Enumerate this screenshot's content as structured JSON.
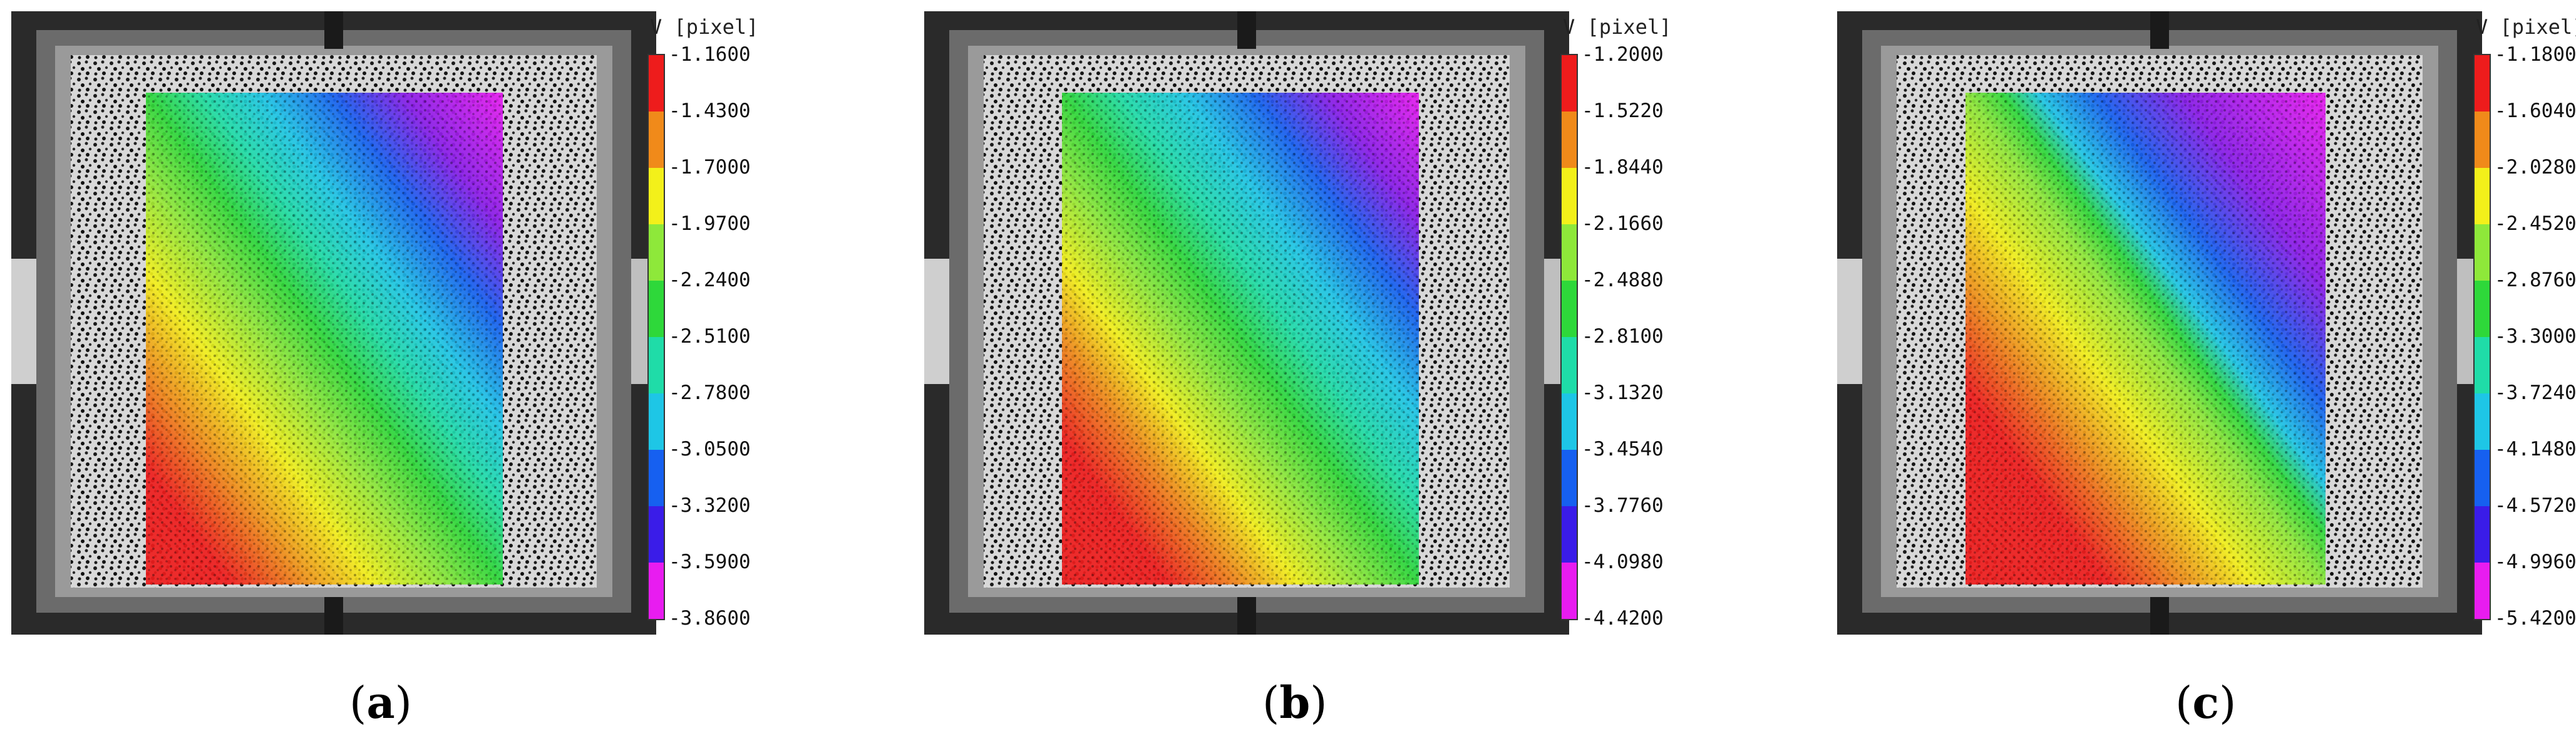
{
  "panels": [
    {
      "id": "a",
      "caption_letter": "a",
      "legend_title": "V [pixel]",
      "legend_ticks": [
        "-1.1600",
        "-1.4300",
        "-1.7000",
        "-1.9700",
        "-2.2400",
        "-2.5100",
        "-2.7800",
        "-3.0500",
        "-3.3200",
        "-3.5900",
        "-3.8600"
      ]
    },
    {
      "id": "b",
      "caption_letter": "b",
      "legend_title": "V [pixel]",
      "legend_ticks": [
        "-1.2000",
        "-1.5220",
        "-1.8440",
        "-2.1660",
        "-2.4880",
        "-2.8100",
        "-3.1320",
        "-3.4540",
        "-3.7760",
        "-4.0980",
        "-4.4200"
      ]
    },
    {
      "id": "c",
      "caption_letter": "c",
      "legend_title": "V [pixel]",
      "legend_ticks": [
        "-1.1800",
        "-1.6040",
        "-2.0280",
        "-2.4520",
        "-2.8760",
        "-3.3000",
        "-3.7240",
        "-4.1480",
        "-4.5720",
        "-4.9960",
        "-5.4200"
      ]
    }
  ],
  "colormap": [
    "#ee1c1c",
    "#f08a1a",
    "#f3f01a",
    "#8ee83a",
    "#2ed83a",
    "#1fdca8",
    "#1ec6e6",
    "#1660f0",
    "#3a1ce8",
    "#8a1ce8",
    "#e81cf0"
  ]
}
